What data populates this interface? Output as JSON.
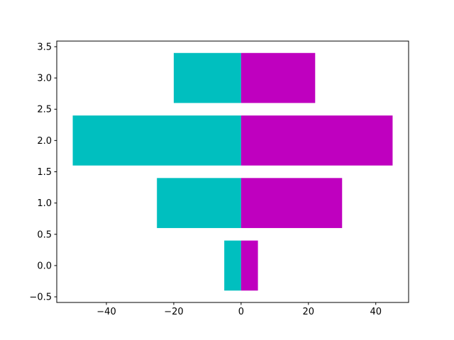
{
  "chart_data": {
    "type": "barh",
    "y": [
      0,
      1,
      2,
      3
    ],
    "series": [
      {
        "color": "#00bfbf",
        "values": [
          -5,
          -25,
          -50,
          -20
        ]
      },
      {
        "color": "#bf00bf",
        "values": [
          5,
          30,
          45,
          22
        ]
      }
    ],
    "bar_height": 0.8,
    "xlim": [
      -54.75,
      49.75
    ],
    "xticks": [
      {
        "value": -40,
        "label": "−40"
      },
      {
        "value": -20,
        "label": "−20"
      },
      0,
      20,
      40
    ],
    "ylim": [
      -0.59,
      3.59
    ],
    "yticks": [
      {
        "value": -0.5,
        "label": "−0.5"
      },
      {
        "value": 0,
        "label": "0.0"
      },
      {
        "value": 0.5,
        "label": "0.5"
      },
      {
        "value": 1,
        "label": "1.0"
      },
      {
        "value": 1.5,
        "label": "1.5"
      },
      {
        "value": 2,
        "label": "2.0"
      },
      {
        "value": 2.5,
        "label": "2.5"
      },
      {
        "value": 3,
        "label": "3.0"
      },
      {
        "value": 3.5,
        "label": "3.5"
      }
    ],
    "grid": false
  }
}
